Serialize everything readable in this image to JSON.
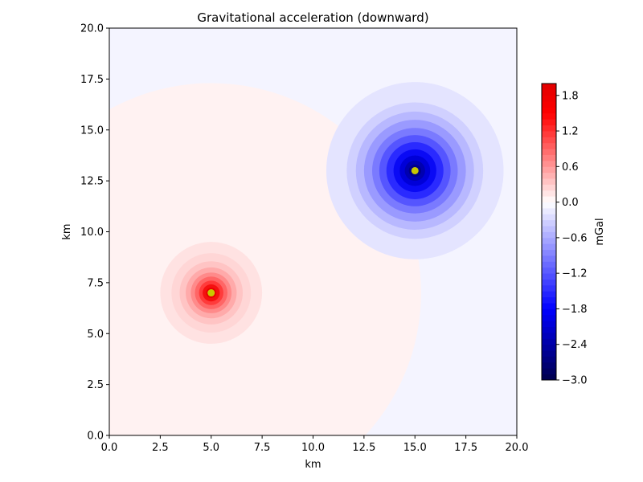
{
  "chart_data": {
    "type": "contour",
    "title": "Gravitational acceleration (downward)",
    "xlabel": "km",
    "ylabel": "km",
    "xlim": [
      0,
      20
    ],
    "ylim": [
      0,
      20
    ],
    "x_ticks": [
      "0.0",
      "2.5",
      "5.0",
      "7.5",
      "10.0",
      "12.5",
      "15.0",
      "17.5",
      "20.0"
    ],
    "y_ticks": [
      "0.0",
      "2.5",
      "5.0",
      "7.5",
      "10.0",
      "12.5",
      "15.0",
      "17.5",
      "20.0"
    ],
    "colormap": "seismic",
    "background_level_color": "#f4f4ff",
    "sources": [
      {
        "x": 5,
        "y": 7,
        "sign": "positive",
        "peak_mgal": 2.0,
        "marker_color": "#c8c800"
      },
      {
        "x": 15,
        "y": 13,
        "sign": "negative",
        "peak_mgal": -3.0,
        "marker_color": "#c8c800"
      }
    ],
    "colorbar": {
      "label": "mGal",
      "range": [
        -3.0,
        2.0
      ],
      "ticks": [
        "1.8",
        "1.2",
        "0.6",
        "0.0",
        "−0.6",
        "−1.2",
        "−1.8",
        "−2.4",
        "−3.0"
      ],
      "tick_values": [
        1.8,
        1.2,
        0.6,
        0.0,
        -0.6,
        -1.2,
        -1.8,
        -2.4,
        -3.0
      ]
    },
    "grid": false
  }
}
